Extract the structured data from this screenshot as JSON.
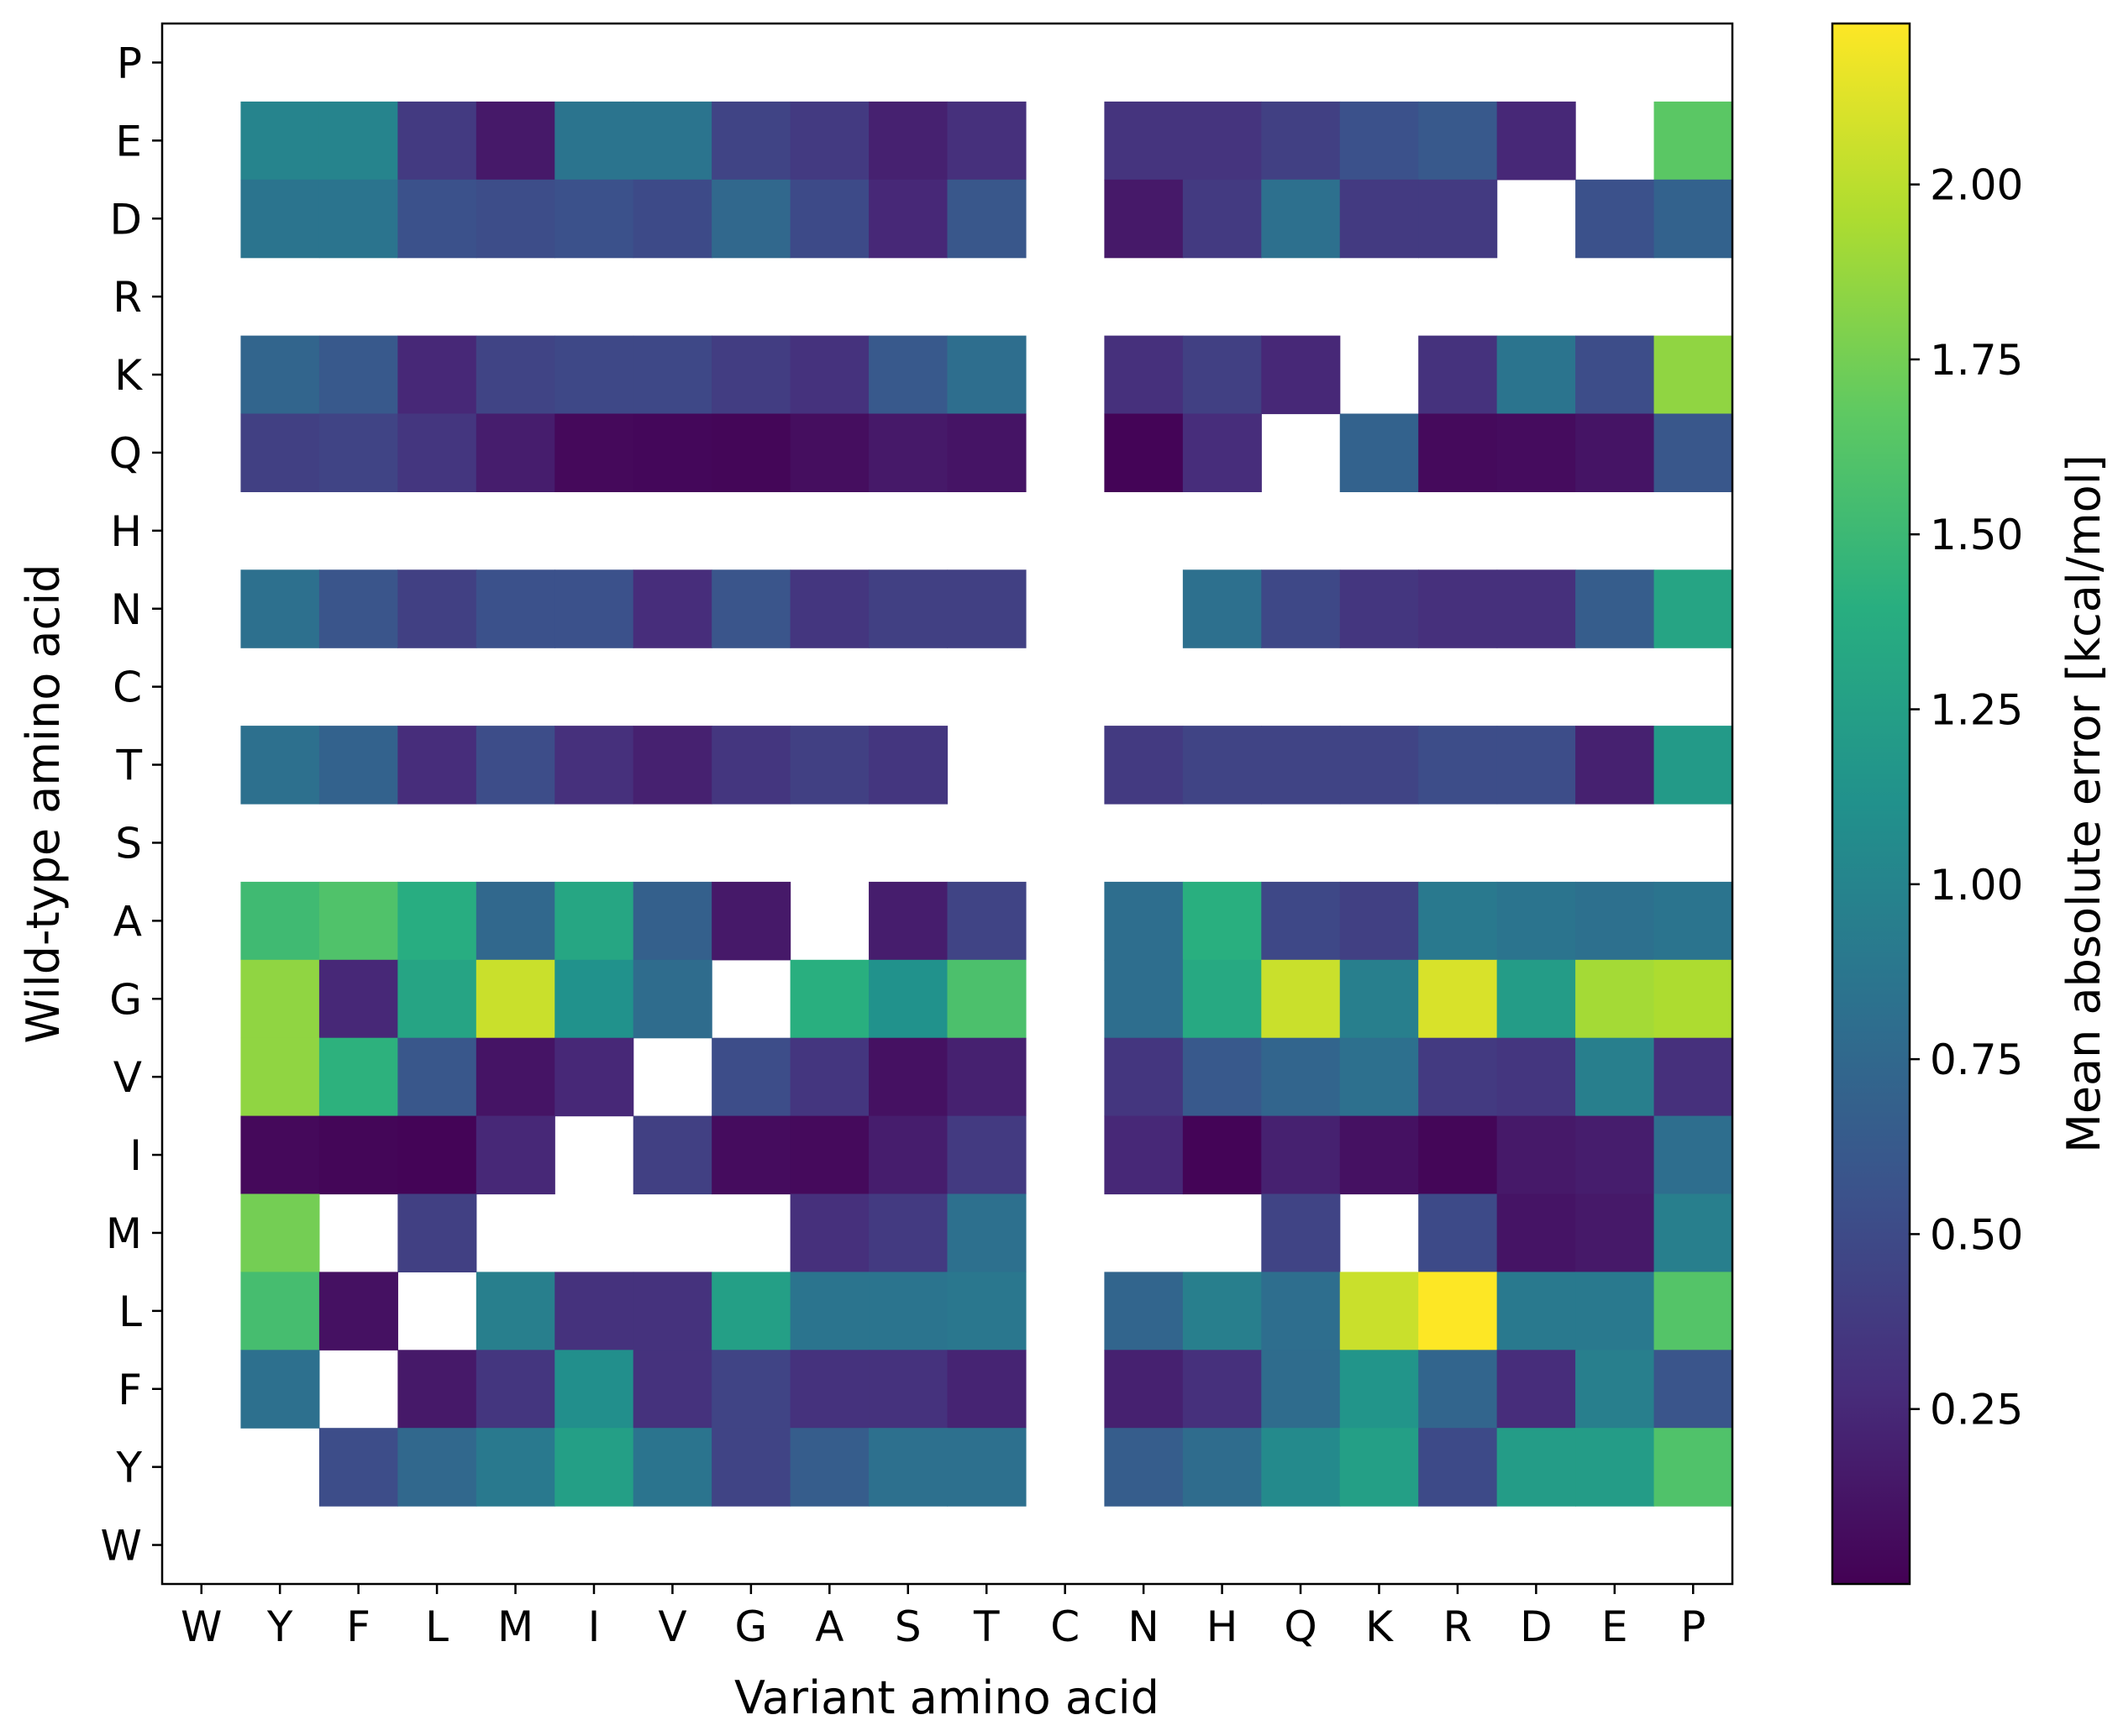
{
  "chart_data": {
    "type": "heatmap",
    "xlabel": "Variant amino acid",
    "ylabel": "Wild-type amino acid",
    "x_categories": [
      "W",
      "Y",
      "F",
      "L",
      "M",
      "I",
      "V",
      "G",
      "A",
      "S",
      "T",
      "C",
      "N",
      "H",
      "Q",
      "K",
      "R",
      "D",
      "E",
      "P"
    ],
    "y_categories_top_to_bottom": [
      "P",
      "E",
      "D",
      "R",
      "K",
      "Q",
      "H",
      "N",
      "C",
      "T",
      "S",
      "A",
      "G",
      "V",
      "I",
      "M",
      "L",
      "F",
      "Y",
      "W"
    ],
    "colorbar": {
      "label": "Mean absolute error [kcal/mol]",
      "vmin": 0.0,
      "vmax": 2.23,
      "colormap": "viridis",
      "ticks": [
        "0.25",
        "0.50",
        "0.75",
        "1.00",
        "1.25",
        "1.50",
        "1.75",
        "2.00"
      ],
      "tick_values": [
        0.25,
        0.5,
        0.75,
        1.0,
        1.25,
        1.5,
        1.75,
        2.0
      ]
    },
    "missing_color": "#ffffff",
    "values": [
      [
        null,
        null,
        null,
        null,
        null,
        null,
        null,
        null,
        null,
        null,
        null,
        null,
        null,
        null,
        null,
        null,
        null,
        null,
        null,
        null
      ],
      [
        null,
        1.0,
        1.0,
        0.38,
        0.15,
        0.85,
        0.85,
        0.45,
        0.38,
        0.2,
        0.3,
        null,
        0.33,
        0.33,
        0.42,
        0.55,
        0.62,
        0.25,
        null,
        1.65
      ],
      [
        null,
        0.85,
        0.85,
        0.55,
        0.52,
        0.55,
        0.5,
        0.75,
        0.5,
        0.25,
        0.6,
        null,
        0.15,
        0.38,
        0.82,
        0.38,
        0.38,
        null,
        0.55,
        0.7
      ],
      [
        null,
        null,
        null,
        null,
        null,
        null,
        null,
        null,
        null,
        null,
        null,
        null,
        null,
        null,
        null,
        null,
        null,
        null,
        null,
        null
      ],
      [
        null,
        0.72,
        0.62,
        0.25,
        0.45,
        0.48,
        0.48,
        0.4,
        0.32,
        0.62,
        0.8,
        null,
        0.3,
        0.42,
        0.25,
        null,
        0.32,
        0.85,
        0.52,
        1.85
      ],
      [
        null,
        0.42,
        0.45,
        0.35,
        0.18,
        0.05,
        0.04,
        0.03,
        0.08,
        0.15,
        0.12,
        null,
        0.02,
        0.28,
        null,
        0.7,
        0.06,
        0.07,
        0.12,
        0.6
      ],
      [
        null,
        null,
        null,
        null,
        null,
        null,
        null,
        null,
        null,
        null,
        null,
        null,
        null,
        null,
        null,
        null,
        null,
        null,
        null,
        null
      ],
      [
        null,
        0.82,
        0.58,
        0.42,
        0.55,
        0.55,
        0.28,
        0.58,
        0.35,
        0.42,
        0.42,
        null,
        null,
        0.82,
        0.48,
        0.35,
        0.3,
        0.3,
        0.65,
        1.3
      ],
      [
        null,
        null,
        null,
        null,
        null,
        null,
        null,
        null,
        null,
        null,
        null,
        null,
        null,
        null,
        null,
        null,
        null,
        null,
        null,
        null
      ],
      [
        null,
        0.82,
        0.7,
        0.28,
        0.52,
        0.3,
        0.2,
        0.35,
        0.42,
        0.35,
        null,
        null,
        0.38,
        0.45,
        0.45,
        0.45,
        0.52,
        0.52,
        0.2,
        1.2
      ],
      [
        null,
        null,
        null,
        null,
        null,
        null,
        null,
        null,
        null,
        null,
        null,
        null,
        null,
        null,
        null,
        null,
        null,
        null,
        null,
        null
      ],
      [
        null,
        1.52,
        1.6,
        1.38,
        0.75,
        1.32,
        0.68,
        0.15,
        null,
        0.18,
        0.45,
        null,
        0.8,
        1.4,
        0.48,
        0.42,
        0.9,
        0.85,
        0.82,
        0.85
      ],
      [
        null,
        1.85,
        0.25,
        1.3,
        2.05,
        1.12,
        0.78,
        null,
        1.4,
        1.12,
        1.58,
        null,
        0.8,
        1.35,
        2.05,
        0.95,
        2.1,
        1.22,
        1.92,
        1.95
      ],
      [
        null,
        1.85,
        1.42,
        0.6,
        0.12,
        0.25,
        null,
        0.52,
        0.35,
        0.1,
        0.2,
        null,
        0.35,
        0.62,
        0.72,
        0.82,
        0.38,
        0.35,
        0.95,
        0.3
      ],
      [
        null,
        0.05,
        0.03,
        0.02,
        0.25,
        null,
        0.42,
        0.07,
        0.06,
        0.18,
        0.38,
        null,
        0.25,
        0.02,
        0.2,
        0.1,
        0.03,
        0.15,
        0.18,
        0.8
      ],
      [
        null,
        1.75,
        null,
        0.42,
        null,
        null,
        null,
        null,
        0.3,
        0.38,
        0.82,
        null,
        null,
        null,
        0.45,
        null,
        0.5,
        0.12,
        0.15,
        0.95
      ],
      [
        null,
        1.55,
        0.1,
        null,
        0.95,
        0.32,
        0.32,
        1.25,
        0.85,
        0.85,
        0.88,
        null,
        0.72,
        0.95,
        0.8,
        2.05,
        2.23,
        0.9,
        0.9,
        1.62
      ],
      [
        null,
        0.82,
        null,
        0.15,
        0.35,
        1.1,
        0.32,
        0.45,
        0.32,
        0.32,
        0.22,
        null,
        0.2,
        0.3,
        0.78,
        1.15,
        0.72,
        0.28,
        0.95,
        0.58
      ],
      [
        null,
        null,
        0.52,
        0.75,
        0.9,
        1.25,
        0.85,
        0.45,
        0.65,
        0.82,
        0.82,
        null,
        0.65,
        0.78,
        1.05,
        1.25,
        0.5,
        1.22,
        1.22,
        1.6
      ],
      [
        null,
        null,
        null,
        null,
        null,
        null,
        null,
        null,
        null,
        null,
        null,
        null,
        null,
        null,
        null,
        null,
        null,
        null,
        null,
        null
      ]
    ]
  }
}
